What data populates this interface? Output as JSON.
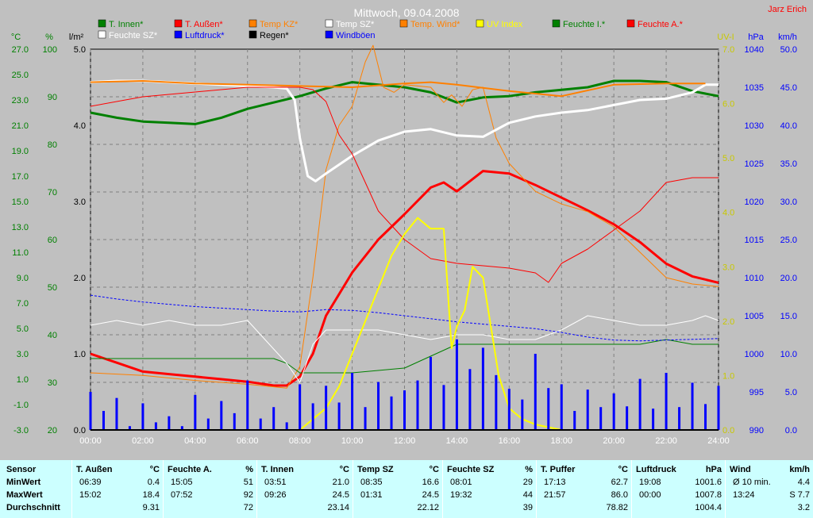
{
  "title": "Mittwoch, 09.04.2008",
  "author": "Jarz Erich",
  "axes": {
    "left_units": [
      "°C",
      "%",
      "l/m²"
    ],
    "right_units": [
      "UV-I",
      "hPa",
      "km/h"
    ],
    "temp_ticks": [
      "27.0",
      "25.0",
      "23.0",
      "21.0",
      "19.0",
      "17.0",
      "15.0",
      "13.0",
      "11.0",
      "9.0",
      "7.0",
      "5.0",
      "3.0",
      "1.0",
      "-1.0",
      "-3.0"
    ],
    "hum_ticks": [
      "100",
      "90",
      "80",
      "70",
      "60",
      "50",
      "40",
      "30",
      "20"
    ],
    "rain_ticks": [
      "5.0",
      "4.0",
      "3.0",
      "2.0",
      "1.0",
      "0.0"
    ],
    "uv_ticks": [
      "7.0",
      "6.0",
      "5.0",
      "4.0",
      "3.0",
      "2.0",
      "1.0",
      "0.0"
    ],
    "hpa_ticks": [
      "1040",
      "1035",
      "1030",
      "1025",
      "1020",
      "1015",
      "1010",
      "1005",
      "1000",
      "995",
      "990"
    ],
    "wind_ticks": [
      "50.0",
      "45.0",
      "40.0",
      "35.0",
      "30.0",
      "25.0",
      "20.0",
      "15.0",
      "10.0",
      "5.0",
      "0.0"
    ],
    "x_ticks": [
      "00:00",
      "02:00",
      "04:00",
      "06:00",
      "08:00",
      "10:00",
      "12:00",
      "14:00",
      "16:00",
      "18:00",
      "20:00",
      "22:00",
      "24:00"
    ]
  },
  "legend": [
    {
      "label": "T. Innen*",
      "color": "#008000"
    },
    {
      "label": "T. Außen*",
      "color": "#ff0000"
    },
    {
      "label": "Temp KZ*",
      "color": "#ff8000"
    },
    {
      "label": "Temp SZ*",
      "color": "#ffffff"
    },
    {
      "label": "Temp. Wind*",
      "color": "#ff8000"
    },
    {
      "label": "UV Index",
      "color": "#ffff00"
    },
    {
      "label": "Feuchte I.*",
      "color": "#008000"
    },
    {
      "label": "Feuchte A.*",
      "color": "#ff0000"
    },
    {
      "label": "Feuchte SZ*",
      "color": "#ffffff"
    },
    {
      "label": "Luftdruck*",
      "color": "#0000ff"
    },
    {
      "label": "Regen*",
      "color": "#000000"
    },
    {
      "label": "Windböen",
      "color": "#0000ff"
    }
  ],
  "colors": {
    "background": "#c0c0c0",
    "grid": "#808080",
    "stats_bg": "#ccffff",
    "axis_green": "#008000",
    "axis_blue": "#0000ff",
    "axis_yellow": "#c8c800"
  },
  "chart_data": {
    "type": "line",
    "x_unit": "hour",
    "xlim": [
      0,
      24
    ],
    "series": [
      {
        "name": "T. Innen*",
        "axis": "temp",
        "color": "#008000",
        "width": 3,
        "x": [
          0,
          1,
          2,
          3,
          4,
          5,
          6,
          7,
          8,
          9,
          10,
          11,
          12,
          13,
          14,
          15,
          16,
          17,
          18,
          19,
          20,
          21,
          22,
          23,
          24
        ],
        "y": [
          22.0,
          21.6,
          21.3,
          21.2,
          21.1,
          21.6,
          22.3,
          22.8,
          23.3,
          23.9,
          24.4,
          24.2,
          24.0,
          23.6,
          22.8,
          23.2,
          23.3,
          23.6,
          23.8,
          24.0,
          24.5,
          24.5,
          24.4,
          23.7,
          23.3
        ]
      },
      {
        "name": "T. Außen*",
        "axis": "temp",
        "color": "#ff0000",
        "width": 3,
        "x": [
          0,
          1,
          2,
          3,
          4,
          5,
          6,
          7,
          7.5,
          8,
          8.5,
          9,
          10,
          11,
          12,
          13,
          13.5,
          14,
          15,
          16,
          17,
          18,
          19,
          20,
          21,
          22,
          23,
          24
        ],
        "y": [
          3.0,
          2.3,
          1.6,
          1.4,
          1.2,
          1.0,
          0.8,
          0.5,
          0.5,
          1.2,
          3.0,
          6.0,
          9.4,
          12.0,
          14.0,
          16.1,
          16.5,
          15.8,
          17.4,
          17.2,
          16.3,
          15.3,
          14.3,
          13.2,
          11.8,
          10.1,
          9.1,
          8.6
        ]
      },
      {
        "name": "Temp KZ*",
        "axis": "temp",
        "color": "#ff8000",
        "width": 1,
        "x": [
          0,
          2,
          4,
          6,
          7.5,
          8,
          8.5,
          9,
          9.5,
          10,
          10.5,
          10.8,
          11.2,
          11.6,
          12,
          13,
          13.5,
          13.8,
          14.2,
          14.6,
          15,
          15.5,
          16,
          17,
          18,
          19,
          20,
          21,
          22,
          23,
          24
        ],
        "y": [
          1.5,
          1.3,
          0.9,
          0.6,
          0.3,
          2.0,
          9.0,
          17.5,
          21.0,
          22.5,
          26.0,
          27.3,
          24.0,
          23.6,
          24.2,
          24.0,
          22.8,
          23.4,
          22.5,
          23.8,
          24.0,
          20.0,
          18.0,
          15.8,
          14.8,
          14.2,
          13.0,
          11.0,
          9.0,
          8.5,
          8.3
        ]
      },
      {
        "name": "Temp SZ*",
        "axis": "temp",
        "color": "#ffffff",
        "width": 3,
        "x": [
          0,
          1,
          2,
          3,
          4,
          5,
          6,
          7,
          7.5,
          7.8,
          8,
          8.3,
          8.6,
          9,
          10,
          11,
          12,
          13,
          14,
          15,
          16,
          17,
          18,
          19,
          20,
          21,
          22,
          23,
          23.5,
          24
        ],
        "y": [
          24.4,
          24.5,
          24.5,
          24.4,
          24.3,
          24.2,
          24.1,
          24.0,
          23.9,
          23.0,
          20.0,
          17.0,
          16.6,
          17.2,
          18.6,
          19.8,
          20.5,
          20.7,
          20.2,
          20.1,
          21.2,
          21.7,
          22.0,
          22.2,
          22.6,
          23.0,
          23.1,
          23.6,
          24.2,
          24.2
        ]
      },
      {
        "name": "Temp. Wind*",
        "axis": "temp",
        "color": "#ff8000",
        "width": 2,
        "x": [
          0,
          2,
          4,
          6,
          8,
          10,
          12,
          13,
          14,
          16,
          18,
          20,
          22,
          23.5
        ],
        "y": [
          24.4,
          24.5,
          24.3,
          24.2,
          24.1,
          24.0,
          24.3,
          24.4,
          24.2,
          23.7,
          23.3,
          24.2,
          24.3,
          24.3
        ]
      },
      {
        "name": "Feuchte I.*",
        "axis": "hum",
        "color": "#008000",
        "width": 1,
        "x": [
          0,
          2,
          4,
          6,
          7,
          7.5,
          8,
          10,
          12,
          14,
          16,
          18,
          19,
          20,
          21,
          22,
          23,
          24
        ],
        "y": [
          35,
          35,
          35,
          35,
          35,
          34,
          32,
          32,
          33,
          38,
          38,
          38,
          38,
          38,
          38,
          39,
          38,
          38
        ]
      },
      {
        "name": "Feuchte A.*",
        "axis": "hum",
        "color": "#ff0000",
        "width": 1,
        "x": [
          0,
          2,
          4,
          6,
          7,
          8,
          8.5,
          9,
          9.5,
          10,
          10.5,
          11,
          12,
          13,
          14,
          15,
          16,
          17,
          17.5,
          18,
          19,
          20,
          21,
          22,
          23,
          24
        ],
        "y": [
          88,
          90,
          91,
          92,
          92,
          92,
          91.5,
          89,
          82,
          78,
          72,
          66,
          60,
          56,
          55,
          54.5,
          54,
          53,
          51,
          55,
          58,
          62,
          66,
          72,
          73,
          73
        ]
      },
      {
        "name": "Feuchte SZ*",
        "axis": "hum",
        "color": "#ffffff",
        "width": 1,
        "x": [
          0,
          1,
          2,
          3,
          4,
          5,
          6,
          7,
          7.5,
          8,
          8.5,
          9,
          10,
          11,
          12,
          13,
          14,
          15,
          16,
          17,
          18,
          19,
          20,
          21,
          22,
          23,
          23.5,
          24
        ],
        "y": [
          42,
          43,
          42,
          43,
          42,
          42,
          43,
          37,
          34,
          30,
          38,
          41,
          41,
          41,
          40,
          39,
          40,
          40,
          39,
          39,
          41,
          44,
          43,
          42,
          42,
          43,
          44,
          43
        ]
      },
      {
        "name": "Luftdruck*",
        "axis": "hpa",
        "color": "#0000ff",
        "width": 1,
        "dash": true,
        "x": [
          0,
          1,
          2,
          3,
          4,
          5,
          6,
          7,
          8,
          9,
          10,
          11,
          12,
          13,
          14,
          15,
          16,
          17,
          18,
          19,
          20,
          21,
          22,
          23,
          24
        ],
        "y": [
          1007.7,
          1007.2,
          1006.8,
          1006.5,
          1006.2,
          1006.0,
          1005.8,
          1005.6,
          1005.5,
          1005.8,
          1005.7,
          1005.4,
          1005.0,
          1004.6,
          1004.2,
          1003.9,
          1003.6,
          1003.3,
          1002.8,
          1002.2,
          1001.8,
          1001.7,
          1001.8,
          1001.9,
          1002.0
        ]
      },
      {
        "name": "UV Index",
        "axis": "uv",
        "color": "#ffff00",
        "width": 2,
        "x": [
          0,
          8,
          8.5,
          9,
          9.5,
          10,
          10.5,
          11,
          11.5,
          12,
          12.5,
          13,
          13.5,
          13.8,
          14,
          14.3,
          14.6,
          15,
          15.3,
          15.6,
          16,
          16.5,
          17,
          18,
          24
        ],
        "y": [
          0,
          0,
          0.2,
          0.4,
          0.8,
          1.4,
          2.0,
          2.6,
          3.2,
          3.6,
          3.9,
          3.7,
          3.7,
          1.5,
          1.9,
          2.2,
          3.0,
          2.8,
          1.9,
          1.0,
          0.4,
          0.2,
          0.1,
          0,
          0
        ]
      },
      {
        "name": "Windböen",
        "axis": "wind",
        "color": "#0000ff",
        "width": 3,
        "bars": true,
        "x": [
          0,
          0.5,
          1,
          1.5,
          2,
          2.5,
          3,
          3.5,
          4,
          4.5,
          5,
          5.5,
          6,
          6.5,
          7,
          7.5,
          8,
          8.5,
          9,
          9.5,
          10,
          10.5,
          11,
          11.5,
          12,
          12.5,
          13,
          13.5,
          14,
          14.5,
          15,
          15.5,
          16,
          16.5,
          17,
          17.5,
          18,
          18.5,
          19,
          19.5,
          20,
          20.5,
          21,
          21.5,
          22,
          22.5,
          23,
          23.5,
          24
        ],
        "y": [
          5.0,
          2.5,
          4.2,
          0.5,
          3.5,
          1.0,
          1.8,
          0.5,
          4.6,
          1.5,
          3.8,
          2.2,
          6.5,
          1.5,
          3.0,
          1.0,
          6.0,
          3.5,
          5.8,
          3.6,
          7.5,
          3.0,
          6.3,
          4.4,
          5.2,
          6.5,
          9.6,
          5.9,
          11.9,
          8.0,
          10.8,
          7.2,
          5.4,
          4.0,
          10.0,
          5.5,
          6.0,
          2.5,
          5.3,
          3.0,
          4.8,
          3.1,
          6.7,
          2.8,
          7.5,
          3.0,
          6.2,
          3.4,
          5.8
        ]
      },
      {
        "name": "Regen*",
        "axis": "rain",
        "color": "#000000",
        "width": 2,
        "x": [
          0,
          24
        ],
        "y": [
          0,
          0
        ]
      }
    ]
  },
  "stats": {
    "row_labels": [
      "Sensor",
      "MinWert",
      "MaxWert",
      "Durchschnitt"
    ],
    "columns": [
      {
        "header": "T. Außen",
        "unit": "°C",
        "min_time": "06:39",
        "min": "0.4",
        "max_time": "15:02",
        "max": "18.4",
        "avg": "9.31"
      },
      {
        "header": "Feuchte A.",
        "unit": "%",
        "min_time": "15:05",
        "min": "51",
        "max_time": "07:52",
        "max": "92",
        "avg": "72"
      },
      {
        "header": "T. Innen",
        "unit": "°C",
        "min_time": "03:51",
        "min": "21.0",
        "max_time": "09:26",
        "max": "24.5",
        "avg": "23.14"
      },
      {
        "header": "Temp SZ",
        "unit": "°C",
        "min_time": "08:35",
        "min": "16.6",
        "max_time": "01:31",
        "max": "24.5",
        "avg": "22.12"
      },
      {
        "header": "Feuchte SZ",
        "unit": "%",
        "min_time": "08:01",
        "min": "29",
        "max_time": "19:32",
        "max": "44",
        "avg": "39"
      },
      {
        "header": "T. Puffer",
        "unit": "°C",
        "min_time": "17:13",
        "min": "62.7",
        "max_time": "21:57",
        "max": "86.0",
        "avg": "78.82"
      },
      {
        "header": "Luftdruck",
        "unit": "hPa",
        "min_time": "19:08",
        "min": "1001.6",
        "max_time": "00:00",
        "max": "1007.8",
        "avg": "1004.4"
      },
      {
        "header": "Wind",
        "unit": "km/h",
        "min_time": "Ø 10 min.",
        "min": "4.4",
        "max_time": "13:24",
        "max": "S 7.7",
        "avg": "3.2"
      }
    ]
  }
}
